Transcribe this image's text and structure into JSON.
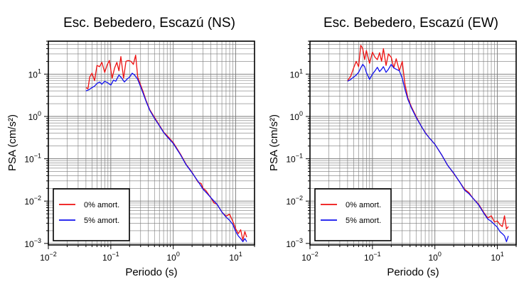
{
  "chart_data": [
    {
      "type": "line",
      "title": "Esc. Bebedero, Escazú (NS)",
      "xlabel": "Periodo (s)",
      "ylabel": "PSA (cm/s²)",
      "xscale": "log",
      "yscale": "log",
      "xlim": [
        0.01,
        20
      ],
      "ylim": [
        0.00092,
        60
      ],
      "grid": true,
      "legend_position": "bottom-left",
      "x_ticks": [
        {
          "value": 0.01,
          "base": "10",
          "exp": "−2"
        },
        {
          "value": 0.1,
          "base": "10",
          "exp": "−1"
        },
        {
          "value": 1,
          "base": "10",
          "exp": "0"
        },
        {
          "value": 10,
          "base": "10",
          "exp": "1"
        }
      ],
      "y_ticks": [
        {
          "value": 0.001,
          "base": "10",
          "exp": "−3"
        },
        {
          "value": 0.01,
          "base": "10",
          "exp": "−2"
        },
        {
          "value": 0.1,
          "base": "10",
          "exp": "−1"
        },
        {
          "value": 1,
          "base": "10",
          "exp": "0"
        },
        {
          "value": 10,
          "base": "10",
          "exp": "1"
        }
      ],
      "series": [
        {
          "name": "0% amort.",
          "color": "#ee1111",
          "x": [
            0.04,
            0.043,
            0.046,
            0.05,
            0.055,
            0.06,
            0.066,
            0.072,
            0.08,
            0.088,
            0.095,
            0.105,
            0.115,
            0.125,
            0.135,
            0.145,
            0.16,
            0.175,
            0.19,
            0.21,
            0.23,
            0.25,
            0.27,
            0.3,
            0.33,
            0.37,
            0.42,
            0.5,
            0.6,
            0.7,
            0.8,
            1.0,
            1.3,
            1.6,
            2.0,
            2.5,
            2.8,
            3.0,
            3.3,
            3.6,
            4.0,
            4.5,
            5.0,
            6.0,
            7.0,
            8.0,
            9.0,
            10.0,
            11.0,
            12.0,
            13.0,
            14.0,
            15.0
          ],
          "y": [
            4.8,
            4.5,
            8.5,
            10.5,
            7.0,
            16.0,
            15.0,
            19.0,
            11.0,
            17.0,
            21.0,
            8.0,
            14.0,
            19.0,
            12.0,
            26.0,
            8.0,
            20.0,
            21.0,
            20.0,
            17.0,
            28.0,
            8.5,
            5.5,
            3.8,
            2.3,
            1.45,
            0.95,
            0.62,
            0.43,
            0.35,
            0.24,
            0.13,
            0.075,
            0.048,
            0.028,
            0.026,
            0.02,
            0.018,
            0.015,
            0.012,
            0.009,
            0.0085,
            0.0055,
            0.0044,
            0.0049,
            0.0033,
            0.0022,
            0.0017,
            0.0021,
            0.0012,
            0.0019,
            0.0014
          ]
        },
        {
          "name": "5% amort.",
          "color": "#1111ee",
          "x": [
            0.04,
            0.045,
            0.05,
            0.055,
            0.06,
            0.066,
            0.072,
            0.08,
            0.09,
            0.1,
            0.11,
            0.12,
            0.135,
            0.15,
            0.165,
            0.18,
            0.2,
            0.22,
            0.24,
            0.27,
            0.3,
            0.33,
            0.37,
            0.42,
            0.5,
            0.6,
            0.7,
            0.8,
            1.0,
            1.3,
            1.6,
            2.0,
            2.5,
            3.0,
            3.5,
            4.0,
            5.0,
            6.0,
            7.0,
            8.0,
            9.0,
            10.0,
            11.0,
            12.0,
            13.0,
            14.0,
            15.0
          ],
          "y": [
            4.0,
            4.3,
            4.8,
            5.2,
            6.0,
            6.5,
            5.8,
            6.8,
            6.2,
            5.5,
            7.2,
            6.8,
            9.5,
            8.0,
            6.5,
            7.5,
            8.5,
            10.5,
            9.5,
            7.5,
            5.0,
            3.5,
            2.2,
            1.4,
            0.9,
            0.6,
            0.42,
            0.33,
            0.23,
            0.125,
            0.073,
            0.047,
            0.029,
            0.019,
            0.015,
            0.012,
            0.0085,
            0.0055,
            0.0042,
            0.0035,
            0.0028,
            0.0019,
            0.0015,
            0.0013,
            0.0011,
            0.0013,
            0.0011
          ]
        }
      ]
    },
    {
      "type": "line",
      "title": "Esc. Bebedero, Escazú (EW)",
      "xlabel": "Periodo (s)",
      "ylabel": "PSA (cm/s²)",
      "xscale": "log",
      "yscale": "log",
      "xlim": [
        0.01,
        20
      ],
      "ylim": [
        0.00092,
        60
      ],
      "grid": true,
      "legend_position": "bottom-left",
      "x_ticks": [
        {
          "value": 0.01,
          "base": "10",
          "exp": "−2"
        },
        {
          "value": 0.1,
          "base": "10",
          "exp": "−1"
        },
        {
          "value": 1,
          "base": "10",
          "exp": "0"
        },
        {
          "value": 10,
          "base": "10",
          "exp": "1"
        }
      ],
      "y_ticks": [
        {
          "value": 0.001,
          "base": "10",
          "exp": "−3"
        },
        {
          "value": 0.01,
          "base": "10",
          "exp": "−2"
        },
        {
          "value": 0.1,
          "base": "10",
          "exp": "−1"
        },
        {
          "value": 1,
          "base": "10",
          "exp": "0"
        },
        {
          "value": 10,
          "base": "10",
          "exp": "1"
        }
      ],
      "series": [
        {
          "name": "0% amort.",
          "color": "#ee1111",
          "x": [
            0.04,
            0.045,
            0.05,
            0.055,
            0.06,
            0.065,
            0.07,
            0.075,
            0.08,
            0.085,
            0.09,
            0.1,
            0.11,
            0.12,
            0.13,
            0.14,
            0.15,
            0.165,
            0.18,
            0.2,
            0.22,
            0.24,
            0.27,
            0.3,
            0.33,
            0.37,
            0.42,
            0.5,
            0.6,
            0.7,
            0.8,
            1.0,
            1.3,
            1.6,
            2.0,
            2.5,
            3.0,
            3.5,
            4.0,
            5.0,
            6.0,
            7.0,
            8.0,
            9.0,
            10.0,
            11.0,
            12.0,
            13.0,
            14.0,
            15.0
          ],
          "y": [
            7.0,
            9.0,
            14.0,
            20.0,
            15.0,
            48.0,
            40.0,
            22.0,
            36.0,
            25.0,
            18.0,
            33.0,
            25.0,
            22.0,
            32.0,
            20.0,
            40.0,
            16.0,
            30.0,
            25.0,
            14.0,
            23.0,
            12.0,
            20.0,
            6.0,
            2.7,
            1.7,
            1.0,
            0.6,
            0.42,
            0.32,
            0.22,
            0.12,
            0.07,
            0.045,
            0.028,
            0.019,
            0.016,
            0.012,
            0.0085,
            0.0055,
            0.004,
            0.0045,
            0.0032,
            0.0034,
            0.0028,
            0.0025,
            0.0045,
            0.0022,
            0.0025
          ]
        },
        {
          "name": "5% amort.",
          "color": "#1111ee",
          "x": [
            0.04,
            0.045,
            0.05,
            0.055,
            0.06,
            0.065,
            0.07,
            0.075,
            0.08,
            0.09,
            0.1,
            0.11,
            0.12,
            0.13,
            0.14,
            0.15,
            0.165,
            0.18,
            0.2,
            0.22,
            0.24,
            0.27,
            0.3,
            0.33,
            0.37,
            0.42,
            0.5,
            0.6,
            0.7,
            0.8,
            1.0,
            1.3,
            1.6,
            2.0,
            2.5,
            3.0,
            3.5,
            4.0,
            5.0,
            6.0,
            7.0,
            8.0,
            9.0,
            10.0,
            11.0,
            12.0,
            13.0,
            14.0,
            15.0
          ],
          "y": [
            6.8,
            7.5,
            8.5,
            9.5,
            11.0,
            14.0,
            17.0,
            15.0,
            11.0,
            7.5,
            10.0,
            12.0,
            14.5,
            11.5,
            13.0,
            15.0,
            11.0,
            13.0,
            17.0,
            14.0,
            13.0,
            12.0,
            8.0,
            4.5,
            2.5,
            1.6,
            0.95,
            0.6,
            0.41,
            0.32,
            0.22,
            0.12,
            0.07,
            0.046,
            0.028,
            0.018,
            0.015,
            0.012,
            0.0082,
            0.0053,
            0.0038,
            0.0033,
            0.0028,
            0.0024,
            0.0019,
            0.0017,
            0.0015,
            0.0011,
            0.0015
          ]
        }
      ]
    }
  ]
}
